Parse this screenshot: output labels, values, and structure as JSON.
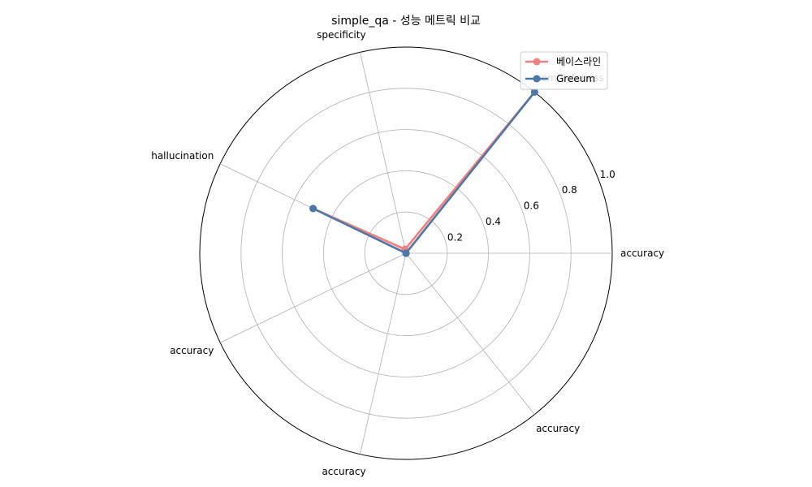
{
  "chart_data": {
    "type": "radar",
    "title": "simple_qa - 성능 메트릭 비교",
    "axes": [
      "accuracy",
      "completeness",
      "specificity",
      "hallucination",
      "accuracy",
      "accuracy",
      "accuracy"
    ],
    "rlim": [
      0,
      1.0
    ],
    "radial_ticks": [
      0.2,
      0.4,
      0.6,
      0.8,
      1.0
    ],
    "radial_tick_labels": [
      "0.2",
      "0.4",
      "0.6",
      "0.8",
      "1.0"
    ],
    "grid": true,
    "legend_position": "top-right",
    "series": [
      {
        "name": "베이스라인",
        "color": "#f08080",
        "values": [
          0.0,
          1.0,
          0.02,
          0.5,
          0.0,
          0.0,
          0.0
        ]
      },
      {
        "name": "Greeum",
        "color": "#4a78a8",
        "values": [
          0.0,
          1.0,
          0.0,
          0.5,
          0.0,
          0.0,
          0.0
        ]
      }
    ]
  }
}
